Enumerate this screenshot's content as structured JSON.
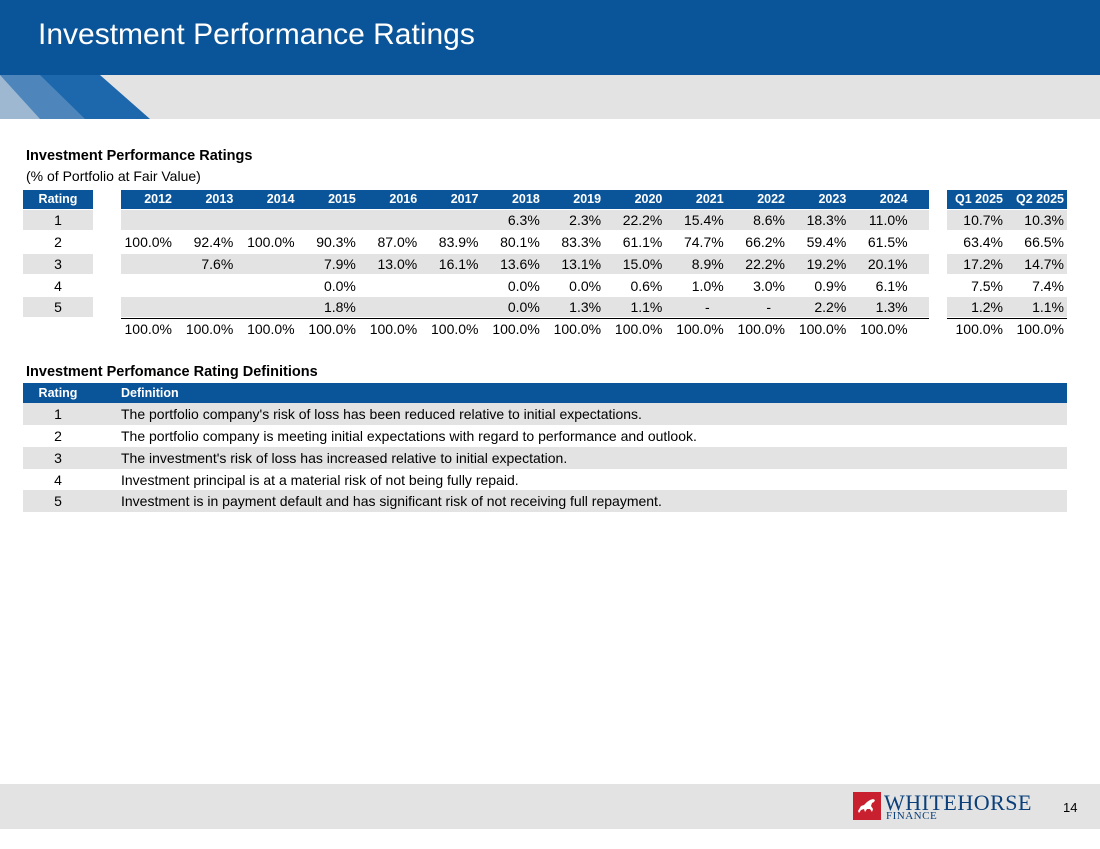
{
  "header": {
    "title": "Investment Performance Ratings"
  },
  "ratings_table": {
    "title": "Investment Performance Ratings",
    "subtitle": "(% of Portfolio at Fair Value)",
    "rating_header": "Rating",
    "columns": [
      "2012",
      "2013",
      "2014",
      "2015",
      "2016",
      "2017",
      "2018",
      "2019",
      "2020",
      "2021",
      "2022",
      "2023",
      "2024",
      "Q1 2025",
      "Q2 2025"
    ],
    "rows": [
      {
        "rating": "1",
        "values": [
          "",
          "",
          "",
          "",
          "",
          "",
          "6.3%",
          "2.3%",
          "22.2%",
          "15.4%",
          "8.6%",
          "18.3%",
          "11.0%",
          "10.7%",
          "10.3%"
        ]
      },
      {
        "rating": "2",
        "values": [
          "100.0%",
          "92.4%",
          "100.0%",
          "90.3%",
          "87.0%",
          "83.9%",
          "80.1%",
          "83.3%",
          "61.1%",
          "74.7%",
          "66.2%",
          "59.4%",
          "61.5%",
          "63.4%",
          "66.5%"
        ]
      },
      {
        "rating": "3",
        "values": [
          "",
          "7.6%",
          "",
          "7.9%",
          "13.0%",
          "16.1%",
          "13.6%",
          "13.1%",
          "15.0%",
          "8.9%",
          "22.2%",
          "19.2%",
          "20.1%",
          "17.2%",
          "14.7%"
        ]
      },
      {
        "rating": "4",
        "values": [
          "",
          "",
          "",
          "0.0%",
          "",
          "",
          "0.0%",
          "0.0%",
          "0.6%",
          "1.0%",
          "3.0%",
          "0.9%",
          "6.1%",
          "7.5%",
          "7.4%"
        ]
      },
      {
        "rating": "5",
        "values": [
          "",
          "",
          "",
          "1.8%",
          "",
          "",
          "0.0%",
          "1.3%",
          "1.1%",
          "-",
          "-",
          "2.2%",
          "1.3%",
          "1.2%",
          "1.1%"
        ]
      }
    ],
    "totals": [
      "100.0%",
      "100.0%",
      "100.0%",
      "100.0%",
      "100.0%",
      "100.0%",
      "100.0%",
      "100.0%",
      "100.0%",
      "100.0%",
      "100.0%",
      "100.0%",
      "100.0%",
      "100.0%",
      "100.0%"
    ]
  },
  "definitions_table": {
    "title": "Investment Perfomance Rating Definitions",
    "rating_header": "Rating",
    "definition_header": "Definition",
    "rows": [
      {
        "rating": "1",
        "definition": "The portfolio company's risk of loss has been reduced relative to initial expectations."
      },
      {
        "rating": "2",
        "definition": "The portfolio company is meeting initial expectations with regard to performance and outlook."
      },
      {
        "rating": "3",
        "definition": "The investment's risk of loss has increased relative to initial expectation."
      },
      {
        "rating": "4",
        "definition": "Investment principal is at a material risk of not being fully repaid."
      },
      {
        "rating": "5",
        "definition": "Investment is in payment default and has significant risk of not receiving full repayment."
      }
    ]
  },
  "footer": {
    "logo_name": "WHITEHORSE",
    "logo_sub": "FINANCE",
    "logo_icon": "horse-logo-icon",
    "page_number": "14"
  },
  "colors": {
    "brand_blue": "#0a5499",
    "band_gray": "#e3e3e3",
    "logo_red": "#c8202f",
    "logo_navy": "#0a3f7a"
  }
}
